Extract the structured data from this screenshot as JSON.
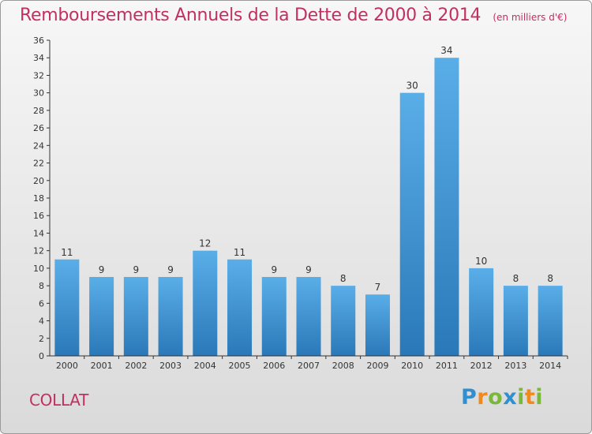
{
  "chart_data": {
    "type": "bar",
    "title": "Remboursements Annuels de la Dette de 2000 à 2014",
    "subtitle": "(en milliers d'€)",
    "categories": [
      "2000",
      "2001",
      "2002",
      "2003",
      "2004",
      "2005",
      "2006",
      "2007",
      "2008",
      "2009",
      "2010",
      "2011",
      "2012",
      "2013",
      "2014"
    ],
    "values": [
      11,
      9,
      9,
      9,
      12,
      11,
      9,
      9,
      8,
      7,
      30,
      34,
      10,
      8,
      8
    ],
    "ylim": [
      0,
      36
    ],
    "yticks": [
      0,
      2,
      4,
      6,
      8,
      10,
      12,
      14,
      16,
      18,
      20,
      22,
      24,
      26,
      28,
      30,
      32,
      34,
      36
    ],
    "grid": false,
    "colors": {
      "bar_light": "#5aaee8",
      "bar_dark": "#2a78b8",
      "title": "#c03060"
    }
  },
  "footer": {
    "commune": "COLLAT",
    "logo_text": "Proxiti"
  }
}
